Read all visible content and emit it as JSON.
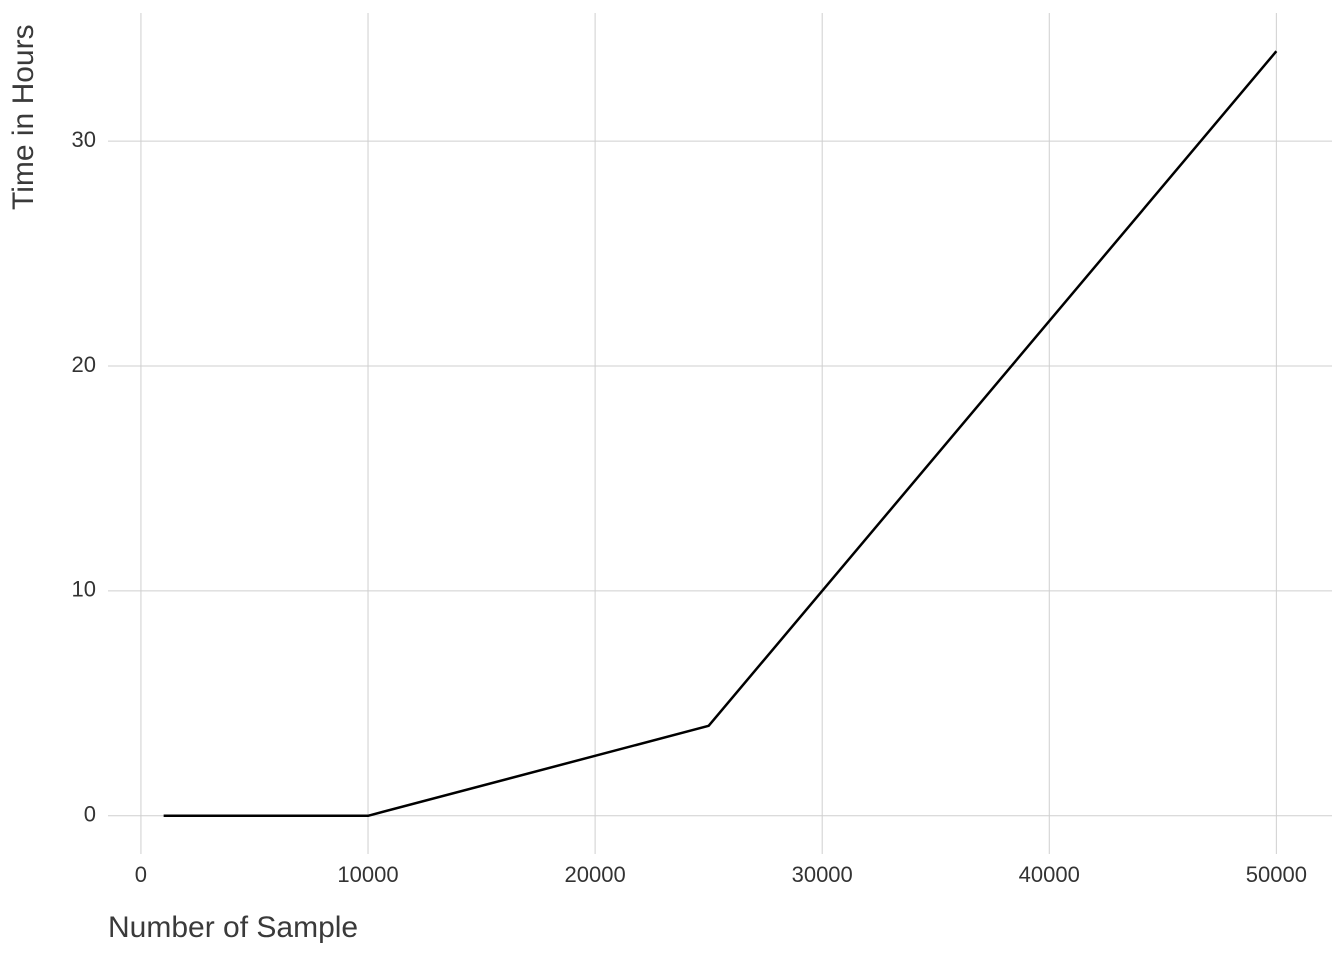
{
  "chart_data": {
    "type": "line",
    "x_label": "Number of Sample",
    "y_label": "Time in Hours",
    "x": [
      1000,
      10000,
      25000,
      50000
    ],
    "series": [
      {
        "color": "#000000",
        "values": [
          0,
          0,
          4,
          34
        ]
      }
    ],
    "xlim": [
      -1450,
      52450
    ],
    "ylim": [
      -1.7,
      35.7
    ],
    "xticks": [
      0,
      10000,
      20000,
      30000,
      40000,
      50000
    ],
    "yticks": [
      0,
      10,
      20,
      30
    ],
    "grid": true
  }
}
